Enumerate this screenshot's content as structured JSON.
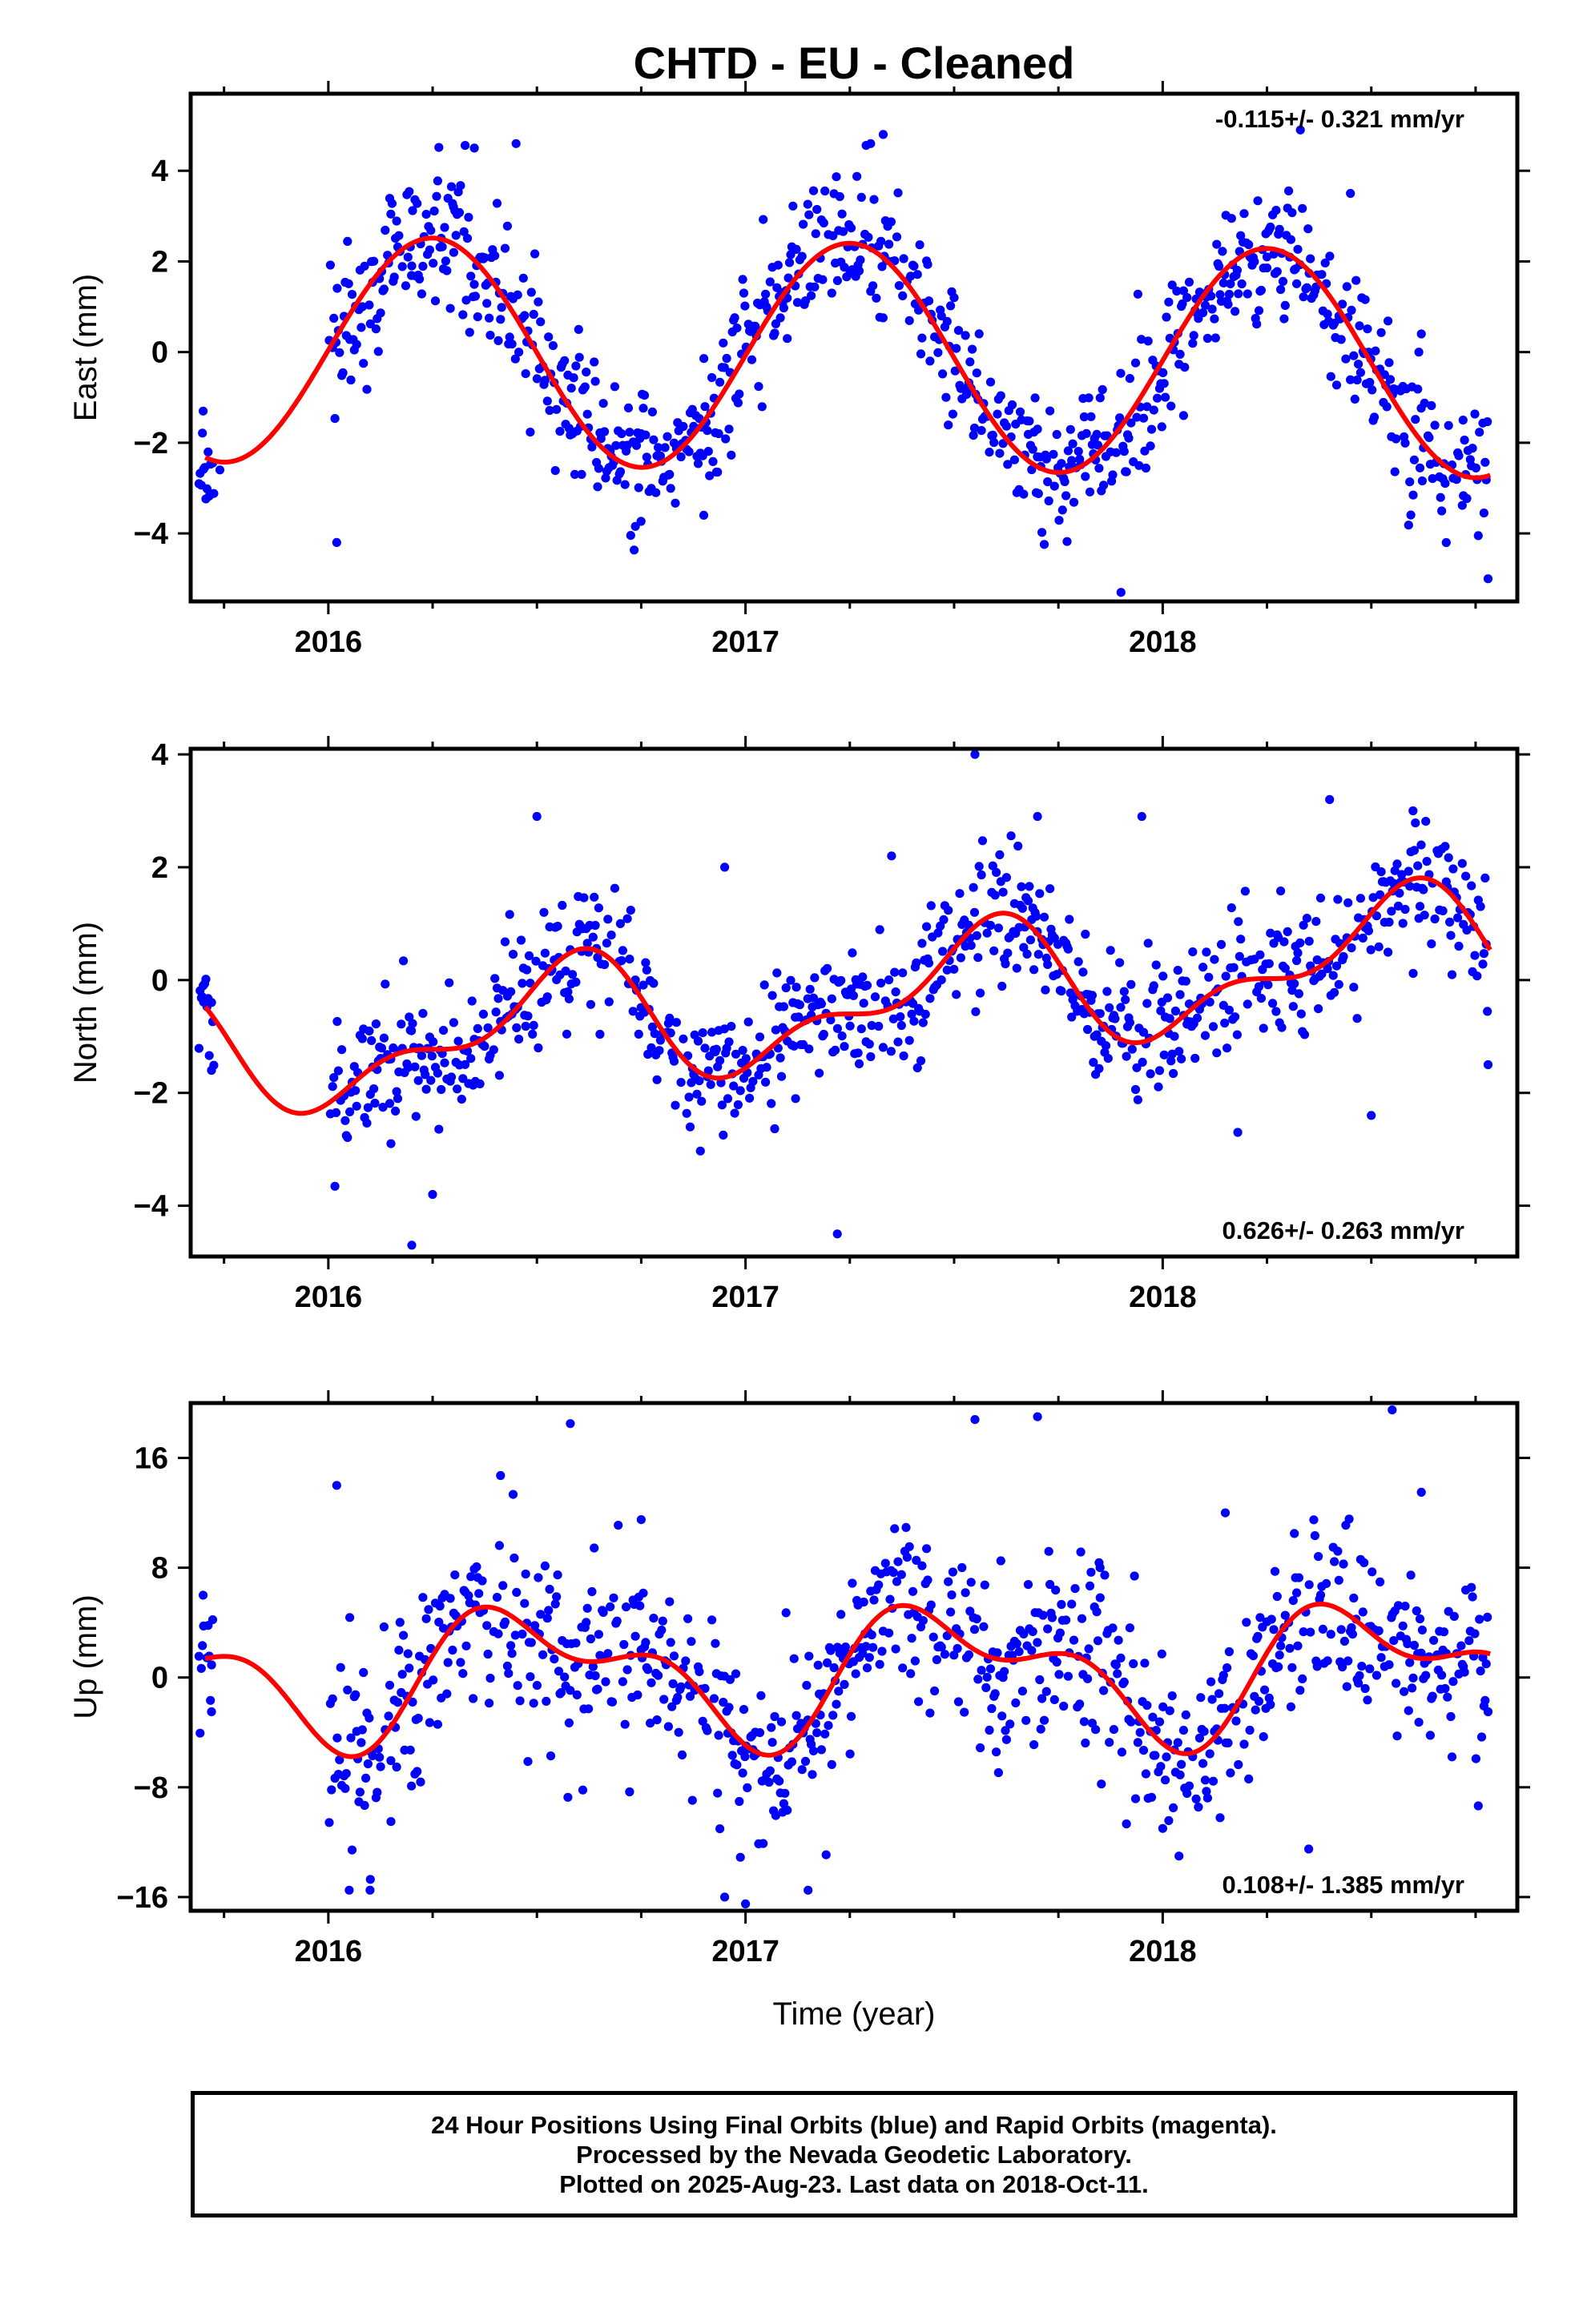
{
  "figure": {
    "title": "CHTD  - EU - Cleaned",
    "caption": [
      "24 Hour Positions Using Final Orbits (blue) and Rapid Orbits (magenta).",
      "Processed by the Nevada Geodetic Laboratory.",
      "Plotted on 2025-Aug-23. Last data on 2018-Oct-11."
    ],
    "colors": {
      "final_orbits": "#0000ff",
      "model_fit": "#ff0000",
      "frame": "#000000"
    }
  },
  "chart_data": [
    {
      "type": "scatter",
      "ylabel": "East (mm)",
      "xlabel": "",
      "xlim": [
        2015.67,
        2018.85
      ],
      "ylim": [
        -5.5,
        5.7
      ],
      "x_ticks": [
        2016,
        2017,
        2018
      ],
      "y_ticks": [
        -4,
        -2,
        0,
        2,
        4
      ],
      "y_tick_labels": [
        "−4",
        "−2",
        "0",
        "2",
        "4"
      ],
      "rate_label": "-0.115+/- 0.321 mm/yr",
      "rate_position": "top-right",
      "model": {
        "offset": -0.1,
        "trend": -0.115,
        "a1": 0.0,
        "b1": 2.5,
        "a2": 0.0,
        "b2": 0.0
      },
      "scatter": {
        "noise": 0.75,
        "gaps": [
          [
            2015.73,
            2016.0
          ]
        ],
        "seed": 11
      },
      "series": [
        {
          "name": "Final Orbits",
          "color": "#0000ff",
          "x": [
            2015.7,
            2015.74,
            2016.02,
            2016.2,
            2016.3,
            2016.35,
            2016.45,
            2016.6,
            2016.75,
            2016.9,
            2017.1,
            2017.3,
            2017.33,
            2017.5,
            2017.7,
            2017.9,
            2018.05,
            2018.25,
            2018.33,
            2018.45,
            2018.62,
            2018.72,
            2018.78
          ],
          "y": [
            -1.3,
            -2.6,
            -4.2,
            1.9,
            3.2,
            4.5,
            4.6,
            0.5,
            -1.8,
            -3.6,
            0.3,
            4.6,
            4.8,
            1.2,
            -1.7,
            -5.3,
            -1.4,
            2.1,
            4.9,
            3.5,
            0.4,
            -1.5,
            -5.0
          ]
        }
      ]
    },
    {
      "type": "scatter",
      "ylabel": "North (mm)",
      "xlabel": "",
      "xlim": [
        2015.67,
        2018.85
      ],
      "ylim": [
        -4.9,
        4.1
      ],
      "x_ticks": [
        2016,
        2017,
        2018
      ],
      "y_ticks": [
        -4,
        -2,
        0,
        2,
        4
      ],
      "y_tick_labels": [
        "−4",
        "−2",
        "0",
        "2",
        "4"
      ],
      "rate_label": "0.626+/- 0.263 mm/yr",
      "rate_position": "bottom-right",
      "model": {
        "offset": -0.4,
        "trend": 0.626,
        "a1": -0.9,
        "b1": -0.3,
        "a2": -0.1,
        "b2": 0.5
      },
      "scatter": {
        "noise": 0.55,
        "gaps": [
          [
            2015.73,
            2016.0
          ]
        ],
        "seed": 23
      },
      "series": [
        {
          "name": "Final Orbits",
          "color": "#0000ff",
          "x": [
            2015.7,
            2015.72,
            2016.15,
            2016.2,
            2016.25,
            2016.5,
            2016.7,
            2016.95,
            2017.12,
            2017.22,
            2017.35,
            2017.55,
            2017.7,
            2017.95,
            2018.18,
            2018.4,
            2018.5,
            2018.6,
            2018.78
          ],
          "y": [
            -0.1,
            -1.6,
            -2.9,
            -4.7,
            -3.8,
            2.9,
            1.0,
            2.0,
            -2.1,
            -4.5,
            2.2,
            4.0,
            2.9,
            2.9,
            -2.7,
            3.2,
            -2.4,
            3.0,
            -1.5
          ]
        }
      ]
    },
    {
      "type": "scatter",
      "ylabel": "Up (mm)",
      "xlabel": "Time (year)",
      "xlim": [
        2015.67,
        2018.85
      ],
      "ylim": [
        -17,
        20
      ],
      "x_ticks": [
        2016,
        2017,
        2018
      ],
      "y_ticks": [
        -16,
        -8,
        0,
        8,
        16
      ],
      "y_tick_labels": [
        "−16",
        "−8",
        "0",
        "8",
        "16"
      ],
      "rate_label": "0.108+/- 1.385 mm/yr",
      "rate_position": "bottom-right",
      "model": {
        "offset": 0.4,
        "trend": 0.108,
        "a1": -4.0,
        "b1": 0.0,
        "a2": -1.3,
        "b2": -2.0
      },
      "scatter": {
        "noise": 3.5,
        "gaps": [
          [
            2015.73,
            2016.0
          ]
        ],
        "seed": 37
      },
      "series": [
        {
          "name": "Final Orbits",
          "color": "#0000ff",
          "x": [
            2015.7,
            2015.72,
            2016.02,
            2016.05,
            2016.1,
            2016.15,
            2016.58,
            2016.75,
            2016.95,
            2017.0,
            2017.15,
            2017.55,
            2017.7,
            2017.85,
            2018.0,
            2018.15,
            2018.35,
            2018.55,
            2018.62,
            2018.78
          ],
          "y": [
            6.0,
            -2.5,
            14.0,
            -15.5,
            -15.5,
            -10.5,
            18.5,
            11.5,
            -16.0,
            -16.5,
            -15.5,
            18.8,
            19.0,
            8.0,
            -11.0,
            12.0,
            -12.5,
            19.5,
            13.5,
            -2.5
          ]
        }
      ]
    }
  ]
}
